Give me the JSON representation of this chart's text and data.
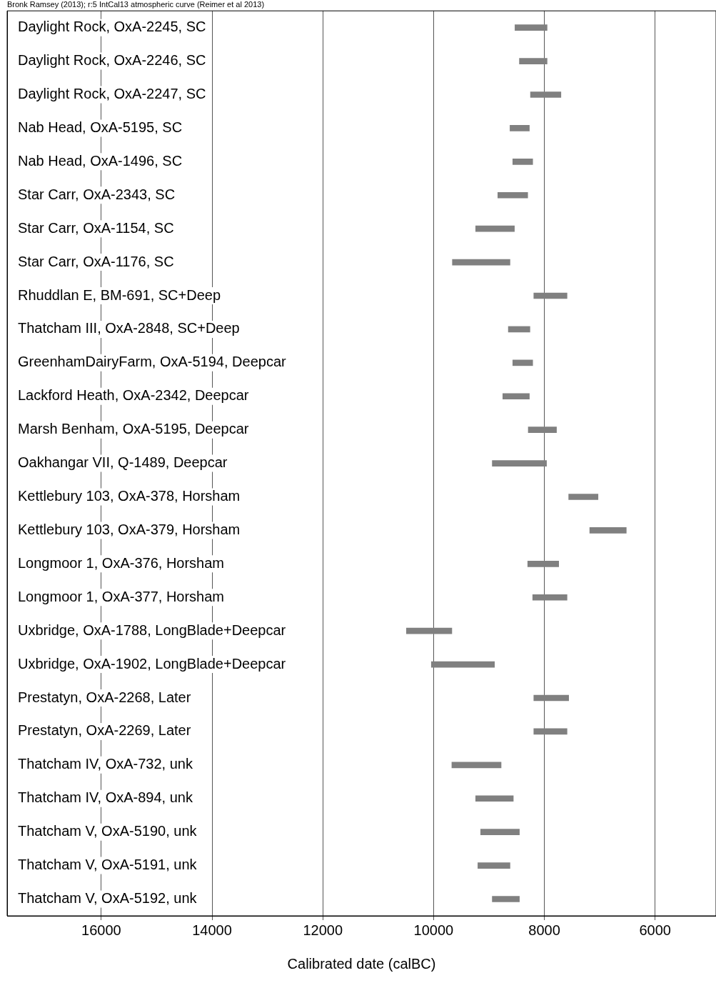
{
  "chart_data": {
    "type": "bar",
    "orientation": "horizontal",
    "title": "Bronk Ramsey (2013); r:5 IntCal13 atmospheric curve (Reimer et al 2013)",
    "xlabel": "Calibrated date (calBC)",
    "categories": [
      "Daylight Rock, OxA-2245, SC",
      "Daylight Rock, OxA-2246, SC",
      "Daylight Rock, OxA-2247, SC",
      "Nab Head, OxA-5195, SC",
      "Nab Head, OxA-1496, SC",
      "Star Carr, OxA-2343, SC",
      "Star Carr, OxA-1154, SC",
      "Star Carr, OxA-1176, SC",
      "Rhuddlan E, BM-691, SC+Deep",
      "Thatcham III, OxA-2848, SC+Deep",
      "GreenhamDairyFarm, OxA-5194, Deepcar",
      "Lackford Heath, OxA-2342, Deepcar",
      "Marsh Benham, OxA-5195, Deepcar",
      "Oakhangar VII, Q-1489, Deepcar",
      "Kettlebury 103, OxA-378, Horsham",
      "Kettlebury 103, OxA-379, Horsham",
      "Longmoor 1, OxA-376, Horsham",
      "Longmoor 1, OxA-377, Horsham",
      "Uxbridge, OxA-1788, LongBlade+Deepcar",
      "Uxbridge, OxA-1902, LongBlade+Deepcar",
      "Prestatyn, OxA-2268, Later",
      "Prestatyn, OxA-2269, Later",
      "Thatcham IV, OxA-732, unk",
      "Thatcham IV, OxA-894, unk",
      "Thatcham V, OxA-5190, unk",
      "Thatcham V, OxA-5191, unk",
      "Thatcham V, OxA-5192, unk"
    ],
    "base": [
      7950,
      7950,
      7700,
      8270,
      8210,
      8300,
      8540,
      8620,
      7590,
      8260,
      8210,
      8270,
      7780,
      7960,
      7030,
      6520,
      7740,
      7590,
      9670,
      8900,
      7560,
      7590,
      8780,
      8560,
      8450,
      8620,
      8450
    ],
    "values": [
      580,
      500,
      550,
      350,
      360,
      540,
      700,
      1040,
      600,
      390,
      360,
      480,
      510,
      980,
      530,
      660,
      560,
      620,
      820,
      1140,
      630,
      600,
      890,
      680,
      700,
      580,
      490
    ],
    "color": "#808080",
    "xlim": [
      17700,
      4900
    ],
    "xticks": [
      16000,
      14000,
      12000,
      10000,
      8000,
      6000
    ],
    "grid": "x",
    "legend": false
  }
}
